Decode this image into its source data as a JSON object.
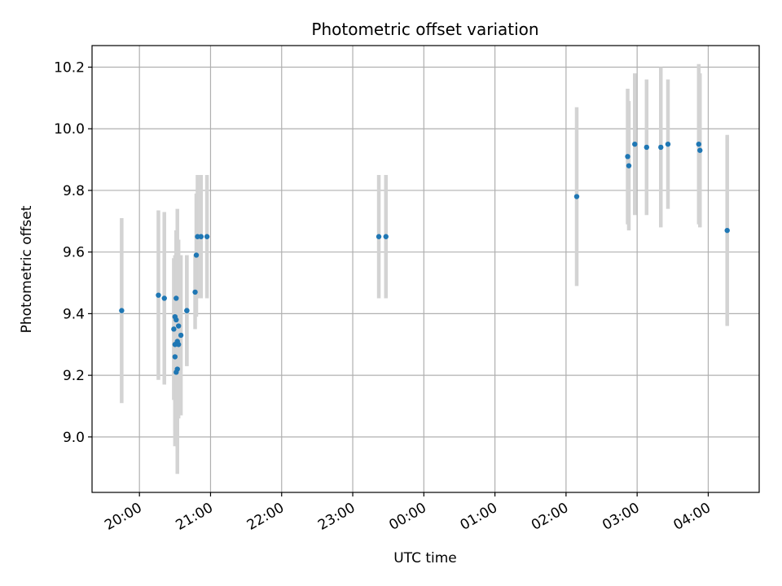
{
  "chart_data": {
    "type": "scatter",
    "title": "Photometric offset variation",
    "xlabel": "UTC time",
    "ylabel": "Photometric offset",
    "grid": true,
    "colors": {
      "point": "#1f77b4",
      "errorbar": "#d3d3d3",
      "grid": "#b0b0b0"
    },
    "x_ticks": [
      "20:00",
      "21:00",
      "22:00",
      "23:00",
      "00:00",
      "01:00",
      "02:00",
      "03:00",
      "04:00"
    ],
    "y_ticks": [
      "9.0",
      "9.2",
      "9.4",
      "9.6",
      "9.8",
      "10.0",
      "10.2"
    ],
    "xlim": [
      "19:20",
      "04:43"
    ],
    "ylim": [
      8.82,
      10.27
    ],
    "series": [
      {
        "points": [
          {
            "t": "19:45",
            "y": 9.41,
            "err": 0.3
          },
          {
            "t": "20:16",
            "y": 9.46,
            "err": 0.275
          },
          {
            "t": "20:21",
            "y": 9.45,
            "err": 0.28
          },
          {
            "t": "20:29",
            "y": 9.35,
            "err": 0.23
          },
          {
            "t": "20:30",
            "y": 9.39,
            "err": 0.2
          },
          {
            "t": "20:30",
            "y": 9.3,
            "err": 0.28
          },
          {
            "t": "20:30",
            "y": 9.26,
            "err": 0.29
          },
          {
            "t": "20:31",
            "y": 9.21,
            "err": 0.23
          },
          {
            "t": "20:31",
            "y": 9.38,
            "err": 0.29
          },
          {
            "t": "20:31",
            "y": 9.45,
            "err": 0.22
          },
          {
            "t": "20:32",
            "y": 9.31,
            "err": 0.43
          },
          {
            "t": "20:32",
            "y": 9.22,
            "err": 0.27
          },
          {
            "t": "20:33",
            "y": 9.36,
            "err": 0.28
          },
          {
            "t": "20:33",
            "y": 9.3,
            "err": 0.24
          },
          {
            "t": "20:35",
            "y": 9.33,
            "err": 0.26
          },
          {
            "t": "20:40",
            "y": 9.41,
            "err": 0.18
          },
          {
            "t": "20:40",
            "y": 9.41,
            "err": 0.18
          },
          {
            "t": "20:47",
            "y": 9.47,
            "err": 0.12
          },
          {
            "t": "20:48",
            "y": 9.59,
            "err": 0.2
          },
          {
            "t": "20:49",
            "y": 9.65,
            "err": 0.2
          },
          {
            "t": "20:52",
            "y": 9.65,
            "err": 0.2
          },
          {
            "t": "20:57",
            "y": 9.65,
            "err": 0.2
          },
          {
            "t": "23:22",
            "y": 9.65,
            "err": 0.2
          },
          {
            "t": "23:28",
            "y": 9.65,
            "err": 0.2
          },
          {
            "t": "02:09",
            "y": 9.78,
            "err": 0.29
          },
          {
            "t": "02:52",
            "y": 9.91,
            "err": 0.22
          },
          {
            "t": "02:53",
            "y": 9.88,
            "err": 0.21
          },
          {
            "t": "02:58",
            "y": 9.95,
            "err": 0.23
          },
          {
            "t": "03:08",
            "y": 9.94,
            "err": 0.22
          },
          {
            "t": "03:20",
            "y": 9.94,
            "err": 0.26
          },
          {
            "t": "03:26",
            "y": 9.95,
            "err": 0.21
          },
          {
            "t": "03:52",
            "y": 9.95,
            "err": 0.26
          },
          {
            "t": "03:53",
            "y": 9.93,
            "err": 0.25
          },
          {
            "t": "04:16",
            "y": 9.67,
            "err": 0.31
          }
        ]
      }
    ]
  }
}
